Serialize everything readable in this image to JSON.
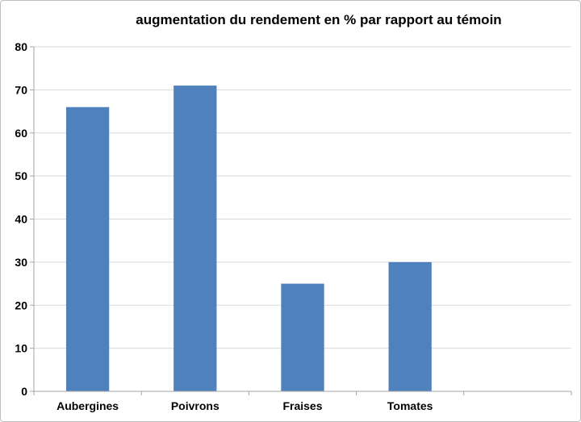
{
  "chart_data": {
    "type": "bar",
    "title": "augmentation du rendement en % par rapport au témoin",
    "categories": [
      "Aubergines",
      "Poivrons",
      "Fraises",
      "Tomates",
      ""
    ],
    "series": [
      {
        "values": [
          66,
          71,
          25,
          30,
          null
        ]
      }
    ],
    "xlabel": "",
    "ylabel": "",
    "ylim": [
      0,
      80
    ],
    "yticks": [
      0,
      10,
      20,
      30,
      40,
      50,
      60,
      70,
      80
    ],
    "grid": true,
    "legend": "none",
    "colors": {
      "bar": "#4f81bd",
      "grid": "#d9d9d9",
      "axis": "#a6a6a6",
      "text": "#000000"
    }
  }
}
